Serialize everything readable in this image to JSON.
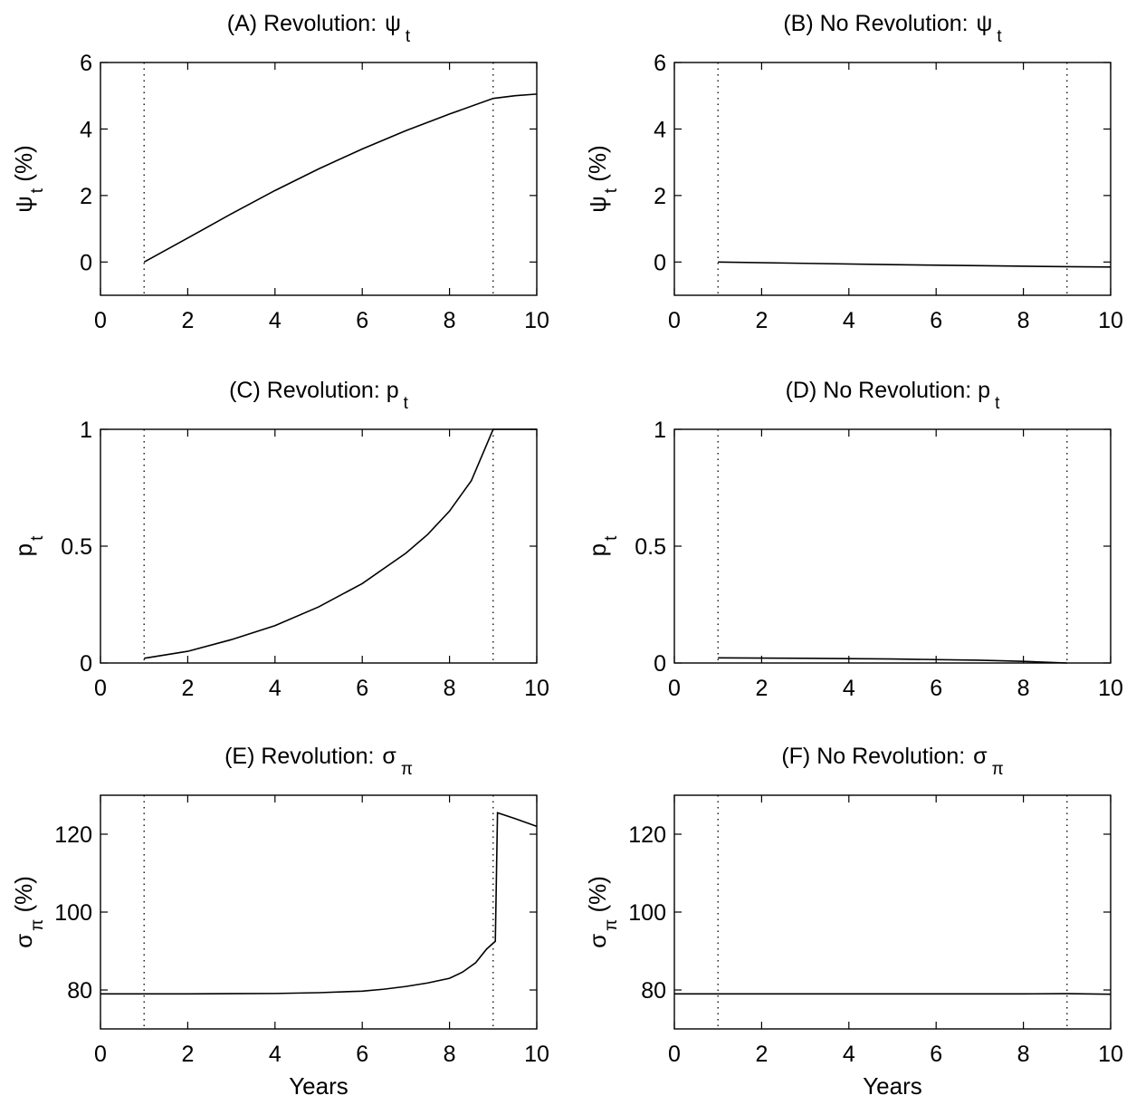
{
  "chart_data": [
    {
      "type": "line",
      "title": {
        "main": "(A) Revolution: ",
        "sym": "ψ",
        "sub": "t"
      },
      "xlabel": "",
      "ylabel": {
        "sym": "ψ",
        "sub": "t",
        "suffix": " (%)"
      },
      "xlim": [
        0,
        10
      ],
      "ylim": [
        -1,
        6
      ],
      "xticks": [
        0,
        2,
        4,
        6,
        8,
        10
      ],
      "xtick_labels": [
        "0",
        "2",
        "4",
        "6",
        "8",
        "10"
      ],
      "yticks": [
        0,
        2,
        4,
        6
      ],
      "ytick_labels": [
        "0",
        "2",
        "4",
        "6"
      ],
      "vlines": [
        1,
        9
      ],
      "series": [
        {
          "x": [
            1,
            2,
            3,
            4,
            5,
            6,
            7,
            8,
            9,
            9.5,
            10
          ],
          "y": [
            0,
            0.72,
            1.45,
            2.15,
            2.8,
            3.4,
            3.95,
            4.45,
            4.92,
            5.0,
            5.05
          ]
        }
      ]
    },
    {
      "type": "line",
      "title": {
        "main": "(B) No Revolution: ",
        "sym": "ψ",
        "sub": "t"
      },
      "xlabel": "",
      "ylabel": {
        "sym": "ψ",
        "sub": "t",
        "suffix": " (%)"
      },
      "xlim": [
        0,
        10
      ],
      "ylim": [
        -1,
        6
      ],
      "xticks": [
        0,
        2,
        4,
        6,
        8,
        10
      ],
      "xtick_labels": [
        "0",
        "2",
        "4",
        "6",
        "8",
        "10"
      ],
      "yticks": [
        0,
        2,
        4,
        6
      ],
      "ytick_labels": [
        "0",
        "2",
        "4",
        "6"
      ],
      "vlines": [
        1,
        9
      ],
      "series": [
        {
          "x": [
            1,
            3,
            5,
            7,
            9,
            10
          ],
          "y": [
            0,
            -0.04,
            -0.08,
            -0.11,
            -0.14,
            -0.15
          ]
        }
      ]
    },
    {
      "type": "line",
      "title": {
        "main": "(C) Revolution: p",
        "sym": "",
        "sub": "t"
      },
      "xlabel": "",
      "ylabel": {
        "sym": "p",
        "sub": "t",
        "suffix": ""
      },
      "xlim": [
        0,
        10
      ],
      "ylim": [
        0,
        1
      ],
      "xticks": [
        0,
        2,
        4,
        6,
        8,
        10
      ],
      "xtick_labels": [
        "0",
        "2",
        "4",
        "6",
        "8",
        "10"
      ],
      "yticks": [
        0,
        0.5,
        1
      ],
      "ytick_labels": [
        "0",
        "0.5",
        "1"
      ],
      "vlines": [
        1,
        9
      ],
      "series": [
        {
          "x": [
            1,
            2,
            3,
            4,
            5,
            6,
            7,
            7.5,
            8,
            8.5,
            9,
            9.5,
            10
          ],
          "y": [
            0.02,
            0.05,
            0.1,
            0.16,
            0.24,
            0.34,
            0.47,
            0.55,
            0.65,
            0.78,
            1.0,
            1.0,
            1.0
          ]
        }
      ]
    },
    {
      "type": "line",
      "title": {
        "main": "(D) No Revolution: p",
        "sym": "",
        "sub": "t"
      },
      "xlabel": "",
      "ylabel": {
        "sym": "p",
        "sub": "t",
        "suffix": ""
      },
      "xlim": [
        0,
        10
      ],
      "ylim": [
        0,
        1
      ],
      "xticks": [
        0,
        2,
        4,
        6,
        8,
        10
      ],
      "xtick_labels": [
        "0",
        "2",
        "4",
        "6",
        "8",
        "10"
      ],
      "yticks": [
        0,
        0.5,
        1
      ],
      "ytick_labels": [
        "0",
        "0.5",
        "1"
      ],
      "vlines": [
        1,
        9
      ],
      "series": [
        {
          "x": [
            1,
            3,
            5,
            7,
            8,
            9
          ],
          "y": [
            0.022,
            0.02,
            0.017,
            0.012,
            0.007,
            0.0
          ]
        }
      ]
    },
    {
      "type": "line",
      "title": {
        "main": "(E) Revolution: ",
        "sym": "σ",
        "sub": "π"
      },
      "xlabel": "Years",
      "ylabel": {
        "sym": "σ",
        "sub": "π",
        "suffix": " (%)"
      },
      "xlim": [
        0,
        10
      ],
      "ylim": [
        70,
        130
      ],
      "xticks": [
        0,
        2,
        4,
        6,
        8,
        10
      ],
      "xtick_labels": [
        "0",
        "2",
        "4",
        "6",
        "8",
        "10"
      ],
      "yticks": [
        80,
        100,
        120
      ],
      "ytick_labels": [
        "80",
        "100",
        "120"
      ],
      "vlines": [
        1,
        9
      ],
      "series": [
        {
          "x": [
            0,
            2,
            4,
            5,
            6,
            6.5,
            7,
            7.5,
            8,
            8.3,
            8.6,
            8.85,
            9,
            9.05,
            9.1,
            9.5,
            10
          ],
          "y": [
            79,
            79,
            79.1,
            79.3,
            79.7,
            80.2,
            80.9,
            81.8,
            83.0,
            84.6,
            87.0,
            90.5,
            92.0,
            92.5,
            125.5,
            124,
            122
          ]
        }
      ]
    },
    {
      "type": "line",
      "title": {
        "main": "(F) No Revolution: ",
        "sym": "σ",
        "sub": "π"
      },
      "xlabel": "Years",
      "ylabel": {
        "sym": "σ",
        "sub": "π",
        "suffix": " (%)"
      },
      "xlim": [
        0,
        10
      ],
      "ylim": [
        70,
        130
      ],
      "xticks": [
        0,
        2,
        4,
        6,
        8,
        10
      ],
      "xtick_labels": [
        "0",
        "2",
        "4",
        "6",
        "8",
        "10"
      ],
      "yticks": [
        80,
        100,
        120
      ],
      "ytick_labels": [
        "80",
        "100",
        "120"
      ],
      "vlines": [
        1,
        9
      ],
      "series": [
        {
          "x": [
            0,
            4,
            8,
            9,
            10
          ],
          "y": [
            79,
            79,
            79,
            79.05,
            78.9
          ]
        }
      ]
    }
  ]
}
